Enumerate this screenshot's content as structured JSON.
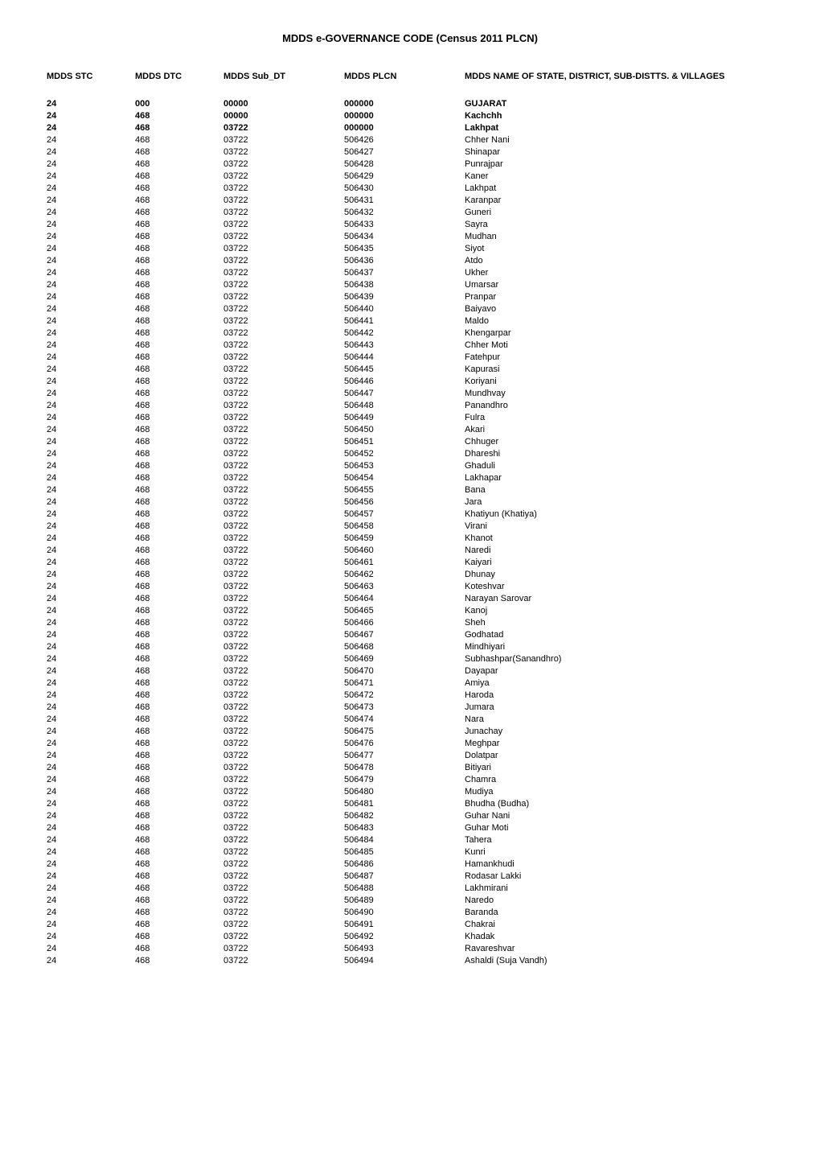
{
  "title": "MDDS e-GOVERNANCE CODE (Census 2011 PLCN)",
  "headers": {
    "stc": "MDDS STC",
    "dtc": "MDDS DTC",
    "sub": "MDDS Sub_DT",
    "plcn": "MDDS PLCN",
    "name": "MDDS NAME OF STATE, DISTRICT, SUB-DISTTS. & VILLAGES"
  },
  "rows": [
    {
      "stc": "24",
      "dtc": "000",
      "sub": "00000",
      "plcn": "000000",
      "name": "GUJARAT",
      "bold": true
    },
    {
      "stc": "24",
      "dtc": "468",
      "sub": "00000",
      "plcn": "000000",
      "name": "Kachchh",
      "bold": true
    },
    {
      "stc": "24",
      "dtc": "468",
      "sub": "03722",
      "plcn": "000000",
      "name": "Lakhpat",
      "bold": true
    },
    {
      "stc": "24",
      "dtc": "468",
      "sub": "03722",
      "plcn": "506426",
      "name": "Chher Nani",
      "bold": false
    },
    {
      "stc": "24",
      "dtc": "468",
      "sub": "03722",
      "plcn": "506427",
      "name": "Shinapar",
      "bold": false
    },
    {
      "stc": "24",
      "dtc": "468",
      "sub": "03722",
      "plcn": "506428",
      "name": "Punrajpar",
      "bold": false
    },
    {
      "stc": "24",
      "dtc": "468",
      "sub": "03722",
      "plcn": "506429",
      "name": "Kaner",
      "bold": false
    },
    {
      "stc": "24",
      "dtc": "468",
      "sub": "03722",
      "plcn": "506430",
      "name": "Lakhpat",
      "bold": false
    },
    {
      "stc": "24",
      "dtc": "468",
      "sub": "03722",
      "plcn": "506431",
      "name": "Karanpar",
      "bold": false
    },
    {
      "stc": "24",
      "dtc": "468",
      "sub": "03722",
      "plcn": "506432",
      "name": "Guneri",
      "bold": false
    },
    {
      "stc": "24",
      "dtc": "468",
      "sub": "03722",
      "plcn": "506433",
      "name": "Sayra",
      "bold": false
    },
    {
      "stc": "24",
      "dtc": "468",
      "sub": "03722",
      "plcn": "506434",
      "name": "Mudhan",
      "bold": false
    },
    {
      "stc": "24",
      "dtc": "468",
      "sub": "03722",
      "plcn": "506435",
      "name": "Siyot",
      "bold": false
    },
    {
      "stc": "24",
      "dtc": "468",
      "sub": "03722",
      "plcn": "506436",
      "name": "Atdo",
      "bold": false
    },
    {
      "stc": "24",
      "dtc": "468",
      "sub": "03722",
      "plcn": "506437",
      "name": "Ukher",
      "bold": false
    },
    {
      "stc": "24",
      "dtc": "468",
      "sub": "03722",
      "plcn": "506438",
      "name": "Umarsar",
      "bold": false
    },
    {
      "stc": "24",
      "dtc": "468",
      "sub": "03722",
      "plcn": "506439",
      "name": "Pranpar",
      "bold": false
    },
    {
      "stc": "24",
      "dtc": "468",
      "sub": "03722",
      "plcn": "506440",
      "name": "Baiyavo",
      "bold": false
    },
    {
      "stc": "24",
      "dtc": "468",
      "sub": "03722",
      "plcn": "506441",
      "name": "Maldo",
      "bold": false
    },
    {
      "stc": "24",
      "dtc": "468",
      "sub": "03722",
      "plcn": "506442",
      "name": "Khengarpar",
      "bold": false
    },
    {
      "stc": "24",
      "dtc": "468",
      "sub": "03722",
      "plcn": "506443",
      "name": "Chher Moti",
      "bold": false
    },
    {
      "stc": "24",
      "dtc": "468",
      "sub": "03722",
      "plcn": "506444",
      "name": "Fatehpur",
      "bold": false
    },
    {
      "stc": "24",
      "dtc": "468",
      "sub": "03722",
      "plcn": "506445",
      "name": "Kapurasi",
      "bold": false
    },
    {
      "stc": "24",
      "dtc": "468",
      "sub": "03722",
      "plcn": "506446",
      "name": "Koriyani",
      "bold": false
    },
    {
      "stc": "24",
      "dtc": "468",
      "sub": "03722",
      "plcn": "506447",
      "name": "Mundhvay",
      "bold": false
    },
    {
      "stc": "24",
      "dtc": "468",
      "sub": "03722",
      "plcn": "506448",
      "name": "Panandhro",
      "bold": false
    },
    {
      "stc": "24",
      "dtc": "468",
      "sub": "03722",
      "plcn": "506449",
      "name": "Fulra",
      "bold": false
    },
    {
      "stc": "24",
      "dtc": "468",
      "sub": "03722",
      "plcn": "506450",
      "name": "Akari",
      "bold": false
    },
    {
      "stc": "24",
      "dtc": "468",
      "sub": "03722",
      "plcn": "506451",
      "name": "Chhuger",
      "bold": false
    },
    {
      "stc": "24",
      "dtc": "468",
      "sub": "03722",
      "plcn": "506452",
      "name": "Dhareshi",
      "bold": false
    },
    {
      "stc": "24",
      "dtc": "468",
      "sub": "03722",
      "plcn": "506453",
      "name": "Ghaduli",
      "bold": false
    },
    {
      "stc": "24",
      "dtc": "468",
      "sub": "03722",
      "plcn": "506454",
      "name": "Lakhapar",
      "bold": false
    },
    {
      "stc": "24",
      "dtc": "468",
      "sub": "03722",
      "plcn": "506455",
      "name": "Bana",
      "bold": false
    },
    {
      "stc": "24",
      "dtc": "468",
      "sub": "03722",
      "plcn": "506456",
      "name": "Jara",
      "bold": false
    },
    {
      "stc": "24",
      "dtc": "468",
      "sub": "03722",
      "plcn": "506457",
      "name": "Khatiyun (Khatiya)",
      "bold": false
    },
    {
      "stc": "24",
      "dtc": "468",
      "sub": "03722",
      "plcn": "506458",
      "name": "Virani",
      "bold": false
    },
    {
      "stc": "24",
      "dtc": "468",
      "sub": "03722",
      "plcn": "506459",
      "name": "Khanot",
      "bold": false
    },
    {
      "stc": "24",
      "dtc": "468",
      "sub": "03722",
      "plcn": "506460",
      "name": "Naredi",
      "bold": false
    },
    {
      "stc": "24",
      "dtc": "468",
      "sub": "03722",
      "plcn": "506461",
      "name": "Kaiyari",
      "bold": false
    },
    {
      "stc": "24",
      "dtc": "468",
      "sub": "03722",
      "plcn": "506462",
      "name": "Dhunay",
      "bold": false
    },
    {
      "stc": "24",
      "dtc": "468",
      "sub": "03722",
      "plcn": "506463",
      "name": "Koteshvar",
      "bold": false
    },
    {
      "stc": "24",
      "dtc": "468",
      "sub": "03722",
      "plcn": "506464",
      "name": "Narayan Sarovar",
      "bold": false
    },
    {
      "stc": "24",
      "dtc": "468",
      "sub": "03722",
      "plcn": "506465",
      "name": "Kanoj",
      "bold": false
    },
    {
      "stc": "24",
      "dtc": "468",
      "sub": "03722",
      "plcn": "506466",
      "name": "Sheh",
      "bold": false
    },
    {
      "stc": "24",
      "dtc": "468",
      "sub": "03722",
      "plcn": "506467",
      "name": "Godhatad",
      "bold": false
    },
    {
      "stc": "24",
      "dtc": "468",
      "sub": "03722",
      "plcn": "506468",
      "name": "Mindhiyari",
      "bold": false
    },
    {
      "stc": "24",
      "dtc": "468",
      "sub": "03722",
      "plcn": "506469",
      "name": "Subhashpar(Sanandhro)",
      "bold": false
    },
    {
      "stc": "24",
      "dtc": "468",
      "sub": "03722",
      "plcn": "506470",
      "name": "Dayapar",
      "bold": false
    },
    {
      "stc": "24",
      "dtc": "468",
      "sub": "03722",
      "plcn": "506471",
      "name": "Amiya",
      "bold": false
    },
    {
      "stc": "24",
      "dtc": "468",
      "sub": "03722",
      "plcn": "506472",
      "name": "Haroda",
      "bold": false
    },
    {
      "stc": "24",
      "dtc": "468",
      "sub": "03722",
      "plcn": "506473",
      "name": "Jumara",
      "bold": false
    },
    {
      "stc": "24",
      "dtc": "468",
      "sub": "03722",
      "plcn": "506474",
      "name": "Nara",
      "bold": false
    },
    {
      "stc": "24",
      "dtc": "468",
      "sub": "03722",
      "plcn": "506475",
      "name": "Junachay",
      "bold": false
    },
    {
      "stc": "24",
      "dtc": "468",
      "sub": "03722",
      "plcn": "506476",
      "name": "Meghpar",
      "bold": false
    },
    {
      "stc": "24",
      "dtc": "468",
      "sub": "03722",
      "plcn": "506477",
      "name": "Dolatpar",
      "bold": false
    },
    {
      "stc": "24",
      "dtc": "468",
      "sub": "03722",
      "plcn": "506478",
      "name": "Bitiyari",
      "bold": false
    },
    {
      "stc": "24",
      "dtc": "468",
      "sub": "03722",
      "plcn": "506479",
      "name": "Chamra",
      "bold": false
    },
    {
      "stc": "24",
      "dtc": "468",
      "sub": "03722",
      "plcn": "506480",
      "name": "Mudiya",
      "bold": false
    },
    {
      "stc": "24",
      "dtc": "468",
      "sub": "03722",
      "plcn": "506481",
      "name": "Bhudha (Budha)",
      "bold": false
    },
    {
      "stc": "24",
      "dtc": "468",
      "sub": "03722",
      "plcn": "506482",
      "name": "Guhar Nani",
      "bold": false
    },
    {
      "stc": "24",
      "dtc": "468",
      "sub": "03722",
      "plcn": "506483",
      "name": "Guhar Moti",
      "bold": false
    },
    {
      "stc": "24",
      "dtc": "468",
      "sub": "03722",
      "plcn": "506484",
      "name": "Tahera",
      "bold": false
    },
    {
      "stc": "24",
      "dtc": "468",
      "sub": "03722",
      "plcn": "506485",
      "name": "Kunri",
      "bold": false
    },
    {
      "stc": "24",
      "dtc": "468",
      "sub": "03722",
      "plcn": "506486",
      "name": "Hamankhudi",
      "bold": false
    },
    {
      "stc": "24",
      "dtc": "468",
      "sub": "03722",
      "plcn": "506487",
      "name": "Rodasar Lakki",
      "bold": false
    },
    {
      "stc": "24",
      "dtc": "468",
      "sub": "03722",
      "plcn": "506488",
      "name": "Lakhmirani",
      "bold": false
    },
    {
      "stc": "24",
      "dtc": "468",
      "sub": "03722",
      "plcn": "506489",
      "name": "Naredo",
      "bold": false
    },
    {
      "stc": "24",
      "dtc": "468",
      "sub": "03722",
      "plcn": "506490",
      "name": "Baranda",
      "bold": false
    },
    {
      "stc": "24",
      "dtc": "468",
      "sub": "03722",
      "plcn": "506491",
      "name": "Chakrai",
      "bold": false
    },
    {
      "stc": "24",
      "dtc": "468",
      "sub": "03722",
      "plcn": "506492",
      "name": "Khadak",
      "bold": false
    },
    {
      "stc": "24",
      "dtc": "468",
      "sub": "03722",
      "plcn": "506493",
      "name": "Ravareshvar",
      "bold": false
    },
    {
      "stc": "24",
      "dtc": "468",
      "sub": "03722",
      "plcn": "506494",
      "name": "Ashaldi (Suja Vandh)",
      "bold": false
    }
  ]
}
